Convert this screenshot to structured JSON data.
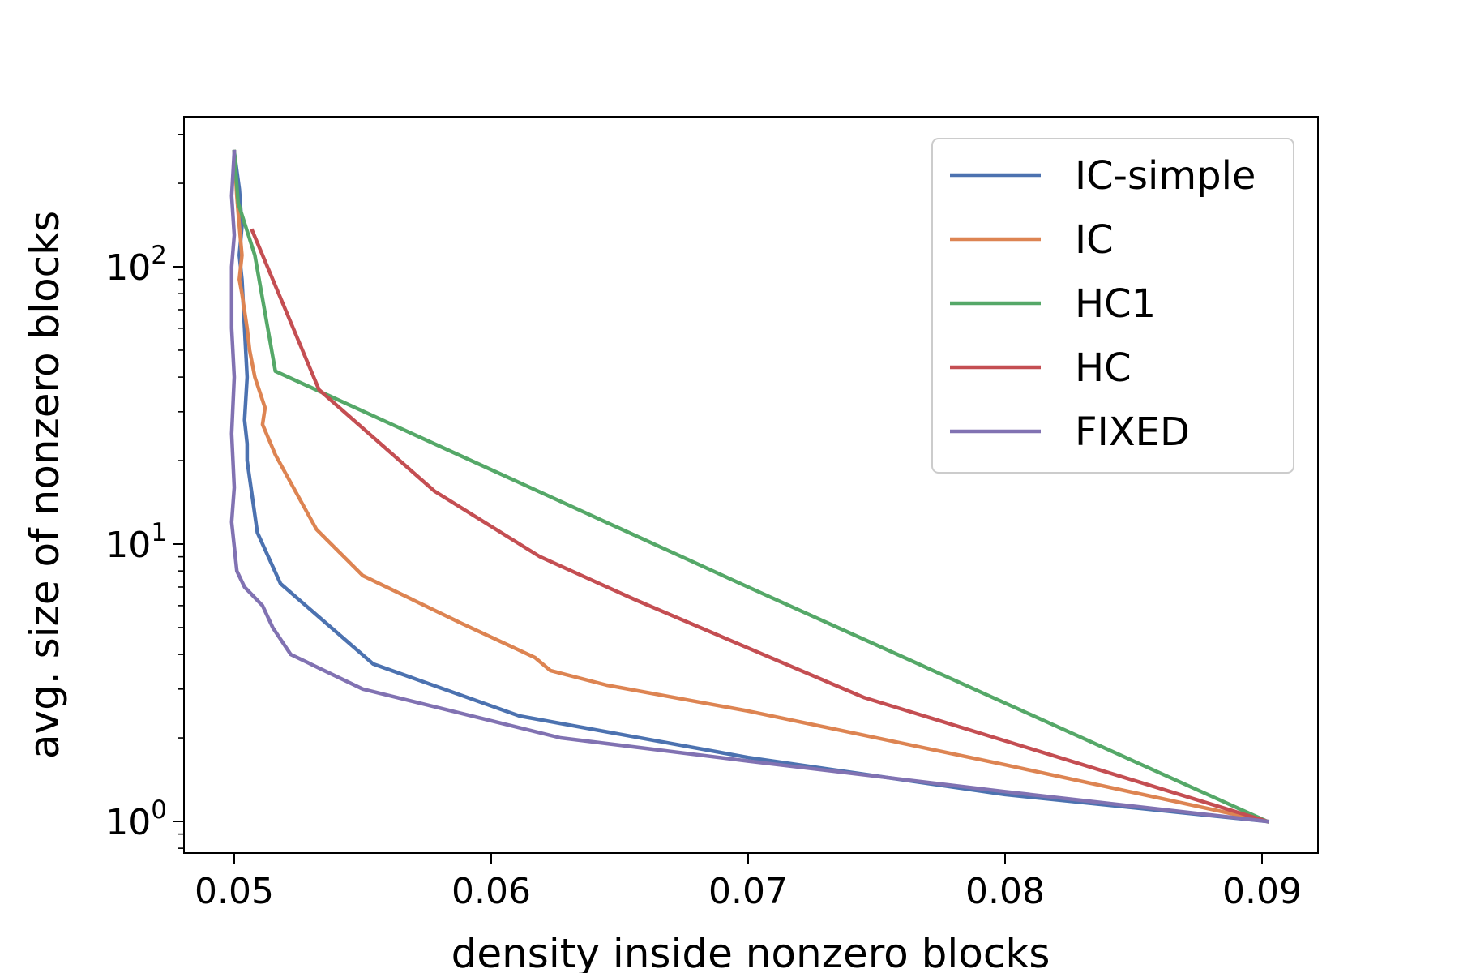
{
  "chart_data": {
    "type": "line",
    "title": "",
    "xlabel": "density inside nonzero blocks",
    "ylabel": "avg. size of nonzero blocks",
    "xlim": [
      0.048,
      0.0922
    ],
    "ylim": [
      0.8,
      320
    ],
    "yscale": "log",
    "grid": false,
    "legend": "top-right",
    "xticks": [
      {
        "value": 0.05,
        "label": "0.05"
      },
      {
        "value": 0.06,
        "label": "0.06"
      },
      {
        "value": 0.07,
        "label": "0.07"
      },
      {
        "value": 0.08,
        "label": "0.08"
      },
      {
        "value": 0.09,
        "label": "0.09"
      }
    ],
    "yticks": [
      {
        "value": 1,
        "base": "10",
        "exp": "0"
      },
      {
        "value": 10,
        "base": "10",
        "exp": "1"
      },
      {
        "value": 100,
        "base": "10",
        "exp": "2"
      }
    ],
    "series": [
      {
        "name": "IC-simple",
        "color": "#4c72b0",
        "x": [
          0.05,
          0.0502,
          0.0503,
          0.0502,
          0.0503,
          0.0504,
          0.0505,
          0.0504,
          0.0505,
          0.0505,
          0.0509,
          0.0518,
          0.0554,
          0.0611,
          0.07,
          0.08,
          0.0902
        ],
        "y": [
          260,
          190,
          140,
          110,
          90,
          60,
          40,
          28,
          23,
          20,
          11,
          7.2,
          3.7,
          2.4,
          1.7,
          1.25,
          1.0
        ]
      },
      {
        "name": "IC",
        "color": "#dd8452",
        "x": [
          0.05,
          0.0501,
          0.0502,
          0.0503,
          0.0502,
          0.0503,
          0.0505,
          0.0506,
          0.0508,
          0.0512,
          0.0511,
          0.0516,
          0.0523,
          0.0532,
          0.055,
          0.0588,
          0.0617,
          0.0623,
          0.0645,
          0.07,
          0.08,
          0.0902
        ],
        "y": [
          260,
          180,
          140,
          110,
          90,
          80,
          60,
          50,
          40,
          31,
          27,
          21,
          16,
          11.3,
          7.7,
          5.2,
          3.9,
          3.5,
          3.1,
          2.5,
          1.6,
          1.0
        ]
      },
      {
        "name": "HC1",
        "color": "#55a868",
        "x": [
          0.05,
          0.05015,
          0.0508,
          0.0516,
          0.07,
          0.0902
        ],
        "y": [
          260,
          170,
          110,
          42,
          7,
          1.0
        ]
      },
      {
        "name": "HC",
        "color": "#c44e52",
        "x": [
          0.0507,
          0.0533,
          0.0578,
          0.0619,
          0.0656,
          0.0745,
          0.0902
        ],
        "y": [
          135,
          36,
          15.5,
          9,
          6.3,
          2.8,
          1.0
        ]
      },
      {
        "name": "FIXED",
        "color": "#8172b2",
        "x": [
          0.05,
          0.0499,
          0.05,
          0.0499,
          0.0499,
          0.0499,
          0.05,
          0.0499,
          0.05,
          0.0499,
          0.0501,
          0.0504,
          0.0511,
          0.0515,
          0.0522,
          0.055,
          0.0627,
          0.07,
          0.08,
          0.0902
        ],
        "y": [
          260,
          180,
          130,
          100,
          80,
          60,
          40,
          25,
          16,
          12,
          8,
          7,
          6,
          5,
          4,
          3,
          2,
          1.65,
          1.28,
          1.0
        ]
      }
    ]
  }
}
